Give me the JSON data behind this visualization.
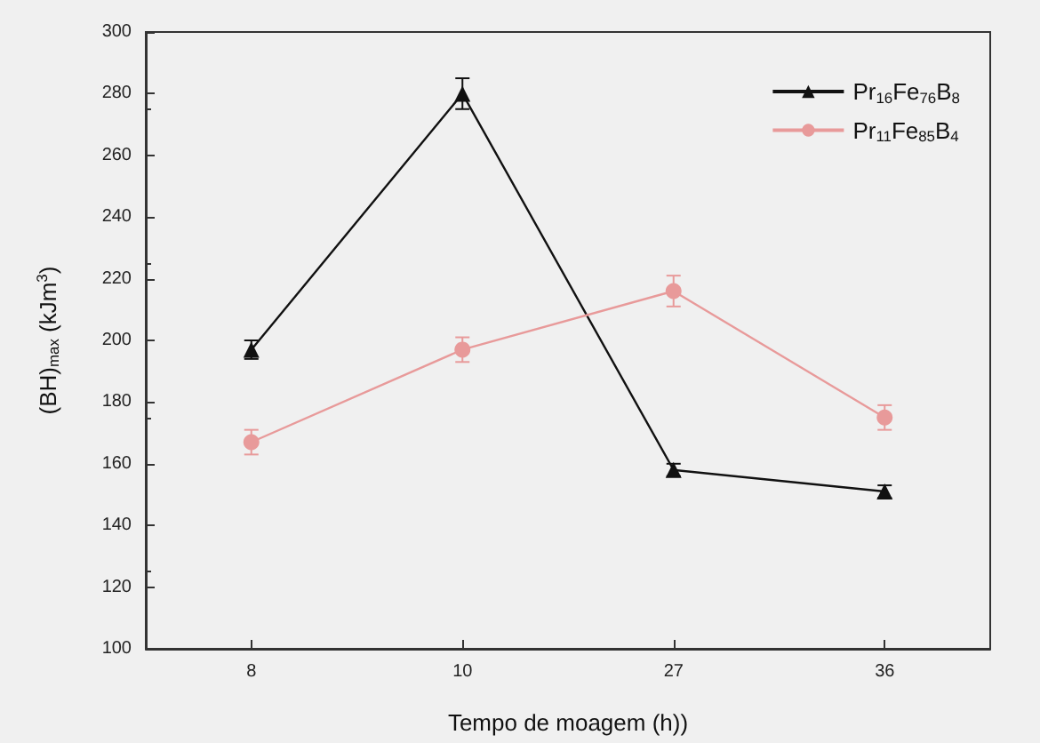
{
  "chart_data": {
    "type": "line",
    "xlabel": "Tempo de moagem (h))",
    "ylabel": "(BH)$_{max}$ (kJm$^{3}$)",
    "categories": [
      "8",
      "10",
      "27",
      "36"
    ],
    "ylim": [
      100,
      300
    ],
    "yticks": [
      100,
      120,
      140,
      160,
      180,
      200,
      220,
      240,
      260,
      280,
      300
    ],
    "grid": false,
    "legend": "top right",
    "series": [
      {
        "name": "Pr$_{16}$Fe$_{76}$B$_{8}$",
        "color": "#111111",
        "marker": "triangle",
        "values": [
          197,
          280,
          158,
          151
        ],
        "errors": [
          3,
          5,
          2,
          2
        ]
      },
      {
        "name": "Pr$_{11}$Fe$_{85}$B$_{4}$",
        "color": "#e89a9a",
        "marker": "circle",
        "values": [
          167,
          197,
          216,
          175
        ],
        "errors": [
          4,
          4,
          5,
          4
        ]
      }
    ]
  }
}
